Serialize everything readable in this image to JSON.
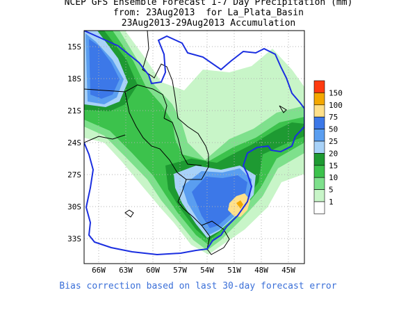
{
  "title": {
    "line1": "NCEP GFS Ensemble Forecast 1-7 Day Precipitation (mm)",
    "line2": "from: 23Aug2013  for La_Plata_Basin",
    "line3": "23Aug2013-29Aug2013 Accumulation"
  },
  "axes": {
    "lat_labels": [
      "15S",
      "18S",
      "21S",
      "24S",
      "27S",
      "30S",
      "33S"
    ],
    "lon_labels": [
      "66W",
      "63W",
      "60W",
      "57W",
      "54W",
      "51W",
      "48W",
      "45W"
    ]
  },
  "legend": {
    "levels": [
      {
        "label": "150",
        "color": "#ff3b10"
      },
      {
        "label": "100",
        "color": "#f4a800"
      },
      {
        "label": "75",
        "color": "#ffe08a"
      },
      {
        "label": "50",
        "color": "#3c78e8"
      },
      {
        "label": "25",
        "color": "#5a9ef0"
      },
      {
        "label": "20",
        "color": "#a8d2f8"
      },
      {
        "label": "15",
        "color": "#1e9a32"
      },
      {
        "label": "10",
        "color": "#3cc24c"
      },
      {
        "label": "5",
        "color": "#7ee08c"
      },
      {
        "label": "1",
        "color": "#c8f5c8"
      },
      {
        "label": "",
        "color": "#ffffff"
      }
    ]
  },
  "footer": {
    "note": "Bias correction based on last 30-day forecast error"
  },
  "colors": {
    "basin_outline": "#1a2ee0",
    "country_border": "#000000",
    "grid": "#b0b0b0"
  }
}
